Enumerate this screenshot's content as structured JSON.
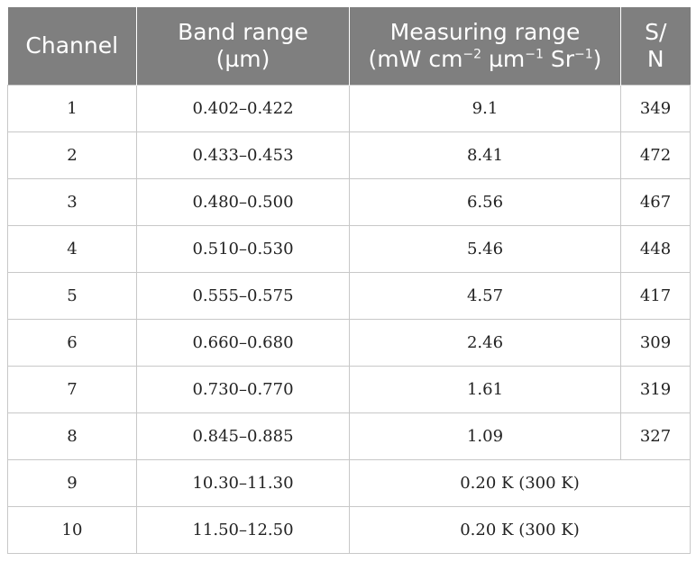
{
  "table": {
    "headers": {
      "channel": "Channel",
      "band_line1": "Band range",
      "band_line2": "(µm)",
      "measure_line1": "Measuring range",
      "measure_unit_a": "(mW cm",
      "measure_exp_a": "−2",
      "measure_unit_b": " µm",
      "measure_exp_b": "−1",
      "measure_unit_c": " Sr",
      "measure_exp_c": "−1",
      "measure_unit_d": ")",
      "sn_line1": "S/",
      "sn_line2": "N"
    },
    "rows": [
      {
        "channel": "1",
        "band": "0.402–0.422",
        "measuring": "9.1",
        "sn": "349"
      },
      {
        "channel": "2",
        "band": "0.433–0.453",
        "measuring": "8.41",
        "sn": "472"
      },
      {
        "channel": "3",
        "band": "0.480–0.500",
        "measuring": "6.56",
        "sn": "467"
      },
      {
        "channel": "4",
        "band": "0.510–0.530",
        "measuring": "5.46",
        "sn": "448"
      },
      {
        "channel": "5",
        "band": "0.555–0.575",
        "measuring": "4.57",
        "sn": "417"
      },
      {
        "channel": "6",
        "band": "0.660–0.680",
        "measuring": "2.46",
        "sn": "309"
      },
      {
        "channel": "7",
        "band": "0.730–0.770",
        "measuring": "1.61",
        "sn": "319"
      },
      {
        "channel": "8",
        "band": "0.845–0.885",
        "measuring": "1.09",
        "sn": "327"
      },
      {
        "channel": "9",
        "band": "10.30–11.30",
        "measuring": "0.20 K (300 K)"
      },
      {
        "channel": "10",
        "band": "11.50–12.50",
        "measuring": "0.20 K (300 K)"
      }
    ]
  },
  "colors": {
    "header_bg": "#7f7f7f",
    "header_text": "#ffffff",
    "grid_line": "#c8c8c8"
  }
}
